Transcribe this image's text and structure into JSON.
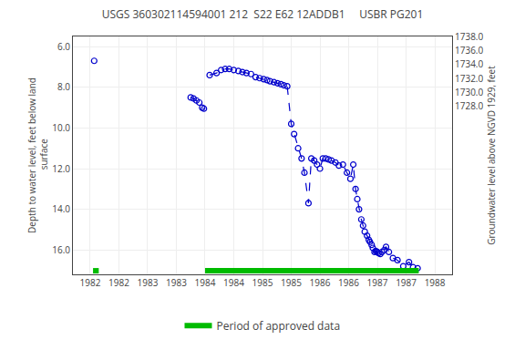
{
  "chart_data": {
    "type": "line",
    "title": "USGS 360302114594001 212  S22 E62 12ADDB1     USBR PG201",
    "ylabel": "Depth to water level, feet below land\n surface",
    "y2label": "Groundwater level above NGVD 1929, feet",
    "xlim": [
      1981.7,
      1988.3
    ],
    "xticks": [
      1982,
      {
        "value": 1982.5,
        "label": "1982"
      },
      1983,
      {
        "value": 1983.5,
        "label": "1983"
      },
      1984,
      {
        "value": 1984.5,
        "label": "1984"
      },
      1985,
      {
        "value": 1985.5,
        "label": "1985"
      },
      1986,
      {
        "value": 1986.5,
        "label": "1986"
      },
      1987,
      {
        "value": 1987.5,
        "label": "1987"
      },
      1988
    ],
    "ylim": [
      17.2,
      5.5
    ],
    "yticks": [
      {
        "value": 6.0,
        "label": "6.0"
      },
      {
        "value": 8.0,
        "label": "8.0"
      },
      {
        "value": 10.0,
        "label": "10.0"
      },
      {
        "value": 12.0,
        "label": "12.0"
      },
      {
        "value": 14.0,
        "label": "14.0"
      },
      {
        "value": 16.0,
        "label": "16.0"
      }
    ],
    "y2lim": [
      1704.1,
      1738.0
    ],
    "y2ticks": [
      {
        "value": 1728.0,
        "label": "1728.0"
      },
      {
        "value": 1730.0,
        "label": "1730.0"
      },
      {
        "value": 1732.0,
        "label": "1732.0"
      },
      {
        "value": 1734.0,
        "label": "1734.0"
      },
      {
        "value": 1736.0,
        "label": "1736.0"
      },
      {
        "value": 1738.0,
        "label": "1738.0"
      }
    ],
    "grid": true,
    "legend": "bottom",
    "series": [
      {
        "type": "line",
        "color": "#0000cc",
        "line_style": "dashed",
        "marker": "open circle",
        "x": [
          1982.07
        ],
        "values": [
          6.7
        ]
      },
      {
        "type": "line",
        "color": "#0000cc",
        "line_style": "dashed",
        "marker": "open circle",
        "x": [
          1983.75,
          1983.8,
          1983.85,
          1983.9,
          1983.95,
          1983.98
        ],
        "values": [
          8.5,
          8.55,
          8.65,
          8.75,
          9.0,
          9.05
        ]
      },
      {
        "type": "line",
        "color": "#0000cc",
        "line_style": "dashed",
        "marker": "open circle",
        "x": [
          1984.08,
          1984.2,
          1984.28,
          1984.35,
          1984.42,
          1984.5,
          1984.58,
          1984.65,
          1984.72,
          1984.8,
          1984.88,
          1984.95,
          1985.02,
          1985.08,
          1985.13,
          1985.2,
          1985.26,
          1985.32,
          1985.37,
          1985.43,
          1985.5,
          1985.55,
          1985.62,
          1985.68,
          1985.73,
          1985.8,
          1985.85,
          1985.9,
          1985.95,
          1986.0,
          1986.05,
          1986.1,
          1986.15,
          1986.2,
          1986.27,
          1986.33,
          1986.4,
          1986.47,
          1986.53,
          1986.58,
          1986.62,
          1986.65,
          1986.68,
          1986.72,
          1986.75,
          1986.78,
          1986.82,
          1986.85,
          1986.87,
          1986.9,
          1986.92,
          1986.95,
          1986.97,
          1987.0,
          1987.02,
          1987.05,
          1987.08,
          1987.12,
          1987.15,
          1987.2,
          1987.27,
          1987.35,
          1987.45,
          1987.55,
          1987.62,
          1987.7
        ],
        "values": [
          7.4,
          7.3,
          7.15,
          7.1,
          7.1,
          7.15,
          7.2,
          7.25,
          7.3,
          7.35,
          7.5,
          7.55,
          7.6,
          7.65,
          7.7,
          7.75,
          7.8,
          7.85,
          7.9,
          7.95,
          9.8,
          10.3,
          11.0,
          11.5,
          12.2,
          13.7,
          11.5,
          11.6,
          11.8,
          12.0,
          11.5,
          11.5,
          11.55,
          11.6,
          11.7,
          11.85,
          11.8,
          12.2,
          12.5,
          11.8,
          13.0,
          13.5,
          14.0,
          14.5,
          14.8,
          15.1,
          15.3,
          15.5,
          15.6,
          15.75,
          15.9,
          16.1,
          16.05,
          16.1,
          16.15,
          16.2,
          16.1,
          16.0,
          15.85,
          16.1,
          16.4,
          16.5,
          16.8,
          16.6,
          16.85,
          16.9
        ]
      },
      {
        "type": "band",
        "name": "Period of approved data",
        "color": "#00bb00",
        "periods": [
          [
            1982.05,
            1982.15
          ],
          [
            1984.0,
            1987.72
          ]
        ]
      }
    ]
  }
}
